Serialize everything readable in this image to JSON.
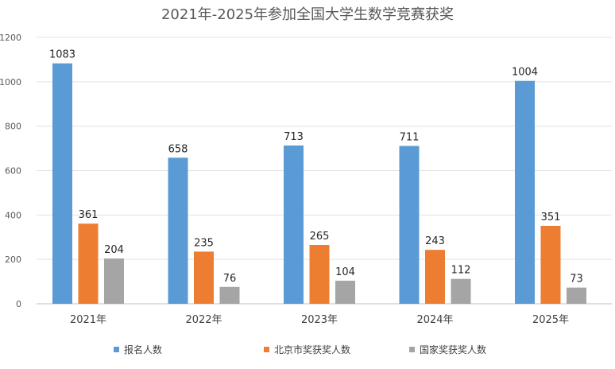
{
  "chart_data": {
    "type": "bar",
    "title": "2021年-2025年参加全国大学生数学竞赛获奖",
    "categories": [
      "2021年",
      "2022年",
      "2023年",
      "2024年",
      "2025年"
    ],
    "series": [
      {
        "name": "报名人数",
        "color": "#5B9BD5",
        "values": [
          1083,
          658,
          713,
          711,
          1004
        ]
      },
      {
        "name": "北京市奖获奖人数",
        "color": "#ED7D31",
        "values": [
          361,
          235,
          265,
          243,
          351
        ]
      },
      {
        "name": "国家奖获奖人数",
        "color": "#A5A5A5",
        "values": [
          204,
          76,
          104,
          112,
          73
        ]
      }
    ],
    "ylim": [
      0,
      1200
    ],
    "yticks": [
      "0",
      "200",
      "400",
      "600",
      "800",
      "1000",
      "1200"
    ],
    "grid": true,
    "legend_position": "bottom",
    "data_labels": true
  }
}
